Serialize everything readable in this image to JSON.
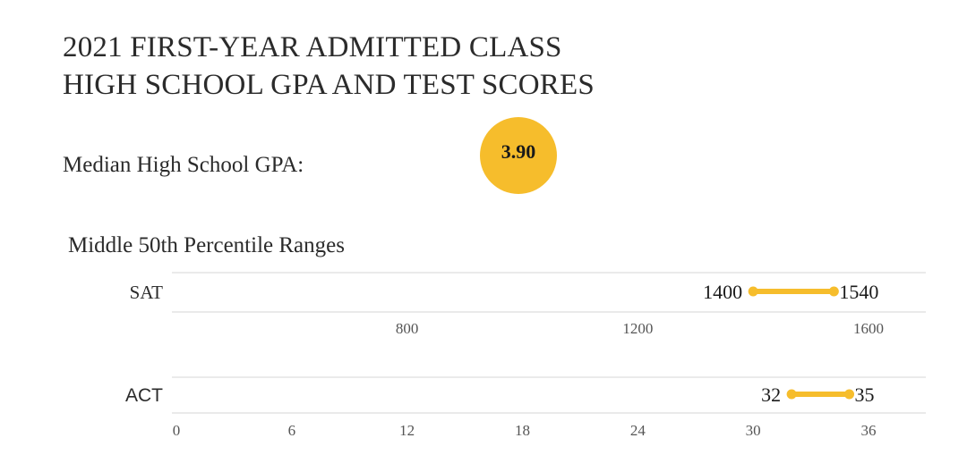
{
  "header": {
    "title_line1": "2021 FIRST-YEAR ADMITTED CLASS",
    "title_line2": "HIGH SCHOOL GPA AND TEST SCORES"
  },
  "gpa": {
    "label": "Median High School GPA:",
    "value": "3.90"
  },
  "colors": {
    "accent": "#f6bd2c",
    "gridline": "#d6d6d6",
    "text": "#2b2b2b"
  },
  "chart_data": [
    {
      "type": "range",
      "title": "Middle 50th Percentile Ranges",
      "category": "SAT",
      "low": 1400,
      "high": 1540,
      "xlim": [
        400,
        1600
      ],
      "ticks": [
        800,
        1200,
        1600
      ],
      "color": "#f6bd2c"
    },
    {
      "type": "range",
      "category": "ACT",
      "low": 32,
      "high": 35,
      "xlim": [
        0,
        36
      ],
      "ticks": [
        0,
        6,
        12,
        18,
        24,
        30,
        36
      ],
      "color": "#f6bd2c"
    }
  ]
}
